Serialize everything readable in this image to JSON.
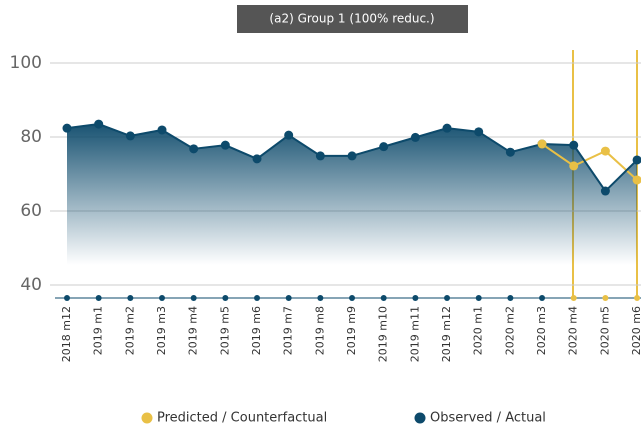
{
  "chart_data": {
    "type": "line",
    "title": "(a2) Group 1 (100% reduc.)",
    "categories": [
      "2018 m12",
      "2019 m1",
      "2019 m2",
      "2019 m3",
      "2019 m4",
      "2019 m5",
      "2019 m6",
      "2019 m7",
      "2019 m8",
      "2019 m9",
      "2019 m10",
      "2019 m11",
      "2019 m12",
      "2020 m1",
      "2020 m2",
      "2020 m3",
      "2020 m4",
      "2020 m5",
      "2020 m6"
    ],
    "series": [
      {
        "name": "Predicted / Counterfactual",
        "color": "#e9c046",
        "values": [
          null,
          null,
          null,
          null,
          null,
          null,
          null,
          null,
          null,
          null,
          null,
          null,
          null,
          null,
          null,
          78.1,
          72.2,
          76.2,
          68.4
        ]
      },
      {
        "name": "Observed / Actual",
        "color": "#0d4a6b",
        "values": [
          82.4,
          83.5,
          80.3,
          81.9,
          76.8,
          77.8,
          74.1,
          80.5,
          74.9,
          74.9,
          77.4,
          79.9,
          82.4,
          81.4,
          75.9,
          78.1,
          77.8,
          65.4,
          73.8
        ]
      }
    ],
    "ylim": [
      36.5,
      105
    ],
    "yticks": [
      40,
      60,
      80,
      100
    ],
    "grid": true
  }
}
